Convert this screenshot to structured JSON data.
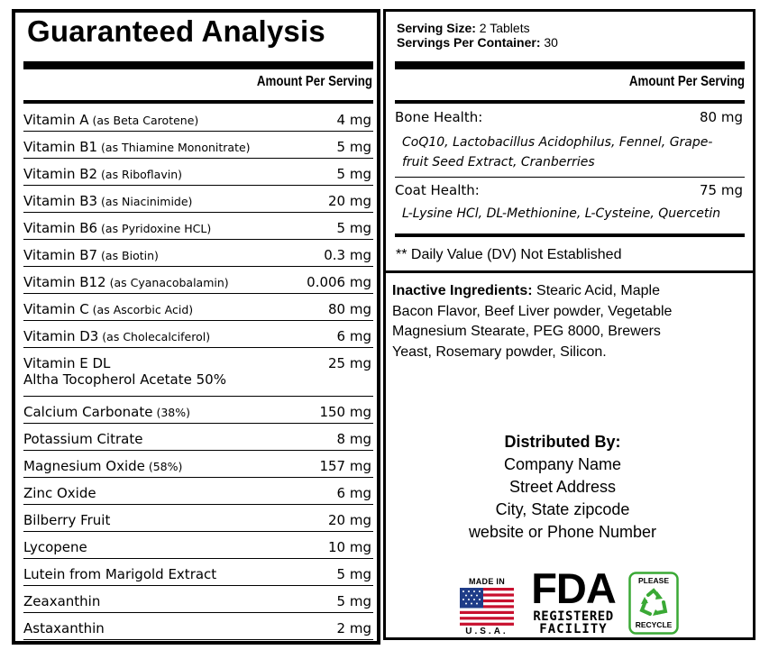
{
  "title": "Guaranteed Analysis",
  "serving": {
    "size_label": "Serving Size:",
    "size_value": " 2 Tablets",
    "per_container_label": "Servings Per Container:",
    "per_container_value": " 30"
  },
  "left_table": {
    "header": "Amount Per Serving",
    "rows": [
      {
        "name": "Vitamin A",
        "sub": " (as Beta Carotene)",
        "amount": "4 mg"
      },
      {
        "name": "Vitamin B1",
        "sub": " (as Thiamine Mononitrate)",
        "amount": "5 mg"
      },
      {
        "name": "Vitamin B2",
        "sub": " (as Riboflavin)",
        "amount": "5 mg"
      },
      {
        "name": "Vitamin B3",
        "sub": " (as Niacinimide)",
        "amount": "20 mg"
      },
      {
        "name": "Vitamin B6",
        "sub": " (as Pyridoxine HCL)",
        "amount": "5 mg"
      },
      {
        "name": "Vitamin B7",
        "sub": " (as Biotin)",
        "amount": "0.3 mg"
      },
      {
        "name": "Vitamin B12",
        "sub": " (as Cyanacobalamin)",
        "amount": "0.006 mg"
      },
      {
        "name": "Vitamin C",
        "sub": " (as Ascorbic Acid)",
        "amount": "80 mg"
      },
      {
        "name": "Vitamin D3",
        "sub": " (as Cholecalciferol)",
        "amount": "6 mg"
      },
      {
        "name": "Vitamin E DL",
        "line2": "Altha Tocopherol Acetate 50%",
        "amount": "25 mg"
      },
      {
        "name": "Calcium Carbonate",
        "sub": " (38%)",
        "amount": "150 mg"
      },
      {
        "name": "Potassium Citrate",
        "amount": "8 mg"
      },
      {
        "name": "Magnesium Oxide",
        "sub": " (58%)",
        "amount": "157 mg"
      },
      {
        "name": "Zinc Oxide",
        "amount": "6 mg"
      },
      {
        "name": "Bilberry Fruit",
        "amount": "20 mg"
      },
      {
        "name": "Lycopene",
        "amount": "10 mg"
      },
      {
        "name": "Lutein from Marigold Extract",
        "amount": "5 mg"
      },
      {
        "name": "Zeaxanthin",
        "amount": "5 mg"
      },
      {
        "name": "Astaxanthin",
        "amount": "2 mg"
      }
    ]
  },
  "right_table": {
    "header": "Amount Per Serving",
    "rows": [
      {
        "label": "Bone Health:",
        "amount": "80 mg",
        "detail_line1": "CoQ10, Lactobacillus Acidophilus, Fennel, Grape-",
        "detail_line2": "fruit Seed Extract, Cranberries"
      },
      {
        "label": "Coat Health:",
        "amount": "75 mg",
        "detail_line1": "L-Lysine HCl, DL-Methionine, L-Cysteine, Quercetin"
      }
    ],
    "note": "** Daily Value (DV) Not Established"
  },
  "inactive": {
    "label": "Inactive Ingredients:",
    "lines": [
      " Stearic Acid, Maple",
      "Bacon Flavor, Beef Liver powder, Vegetable",
      "Magnesium Stearate, PEG 8000, Brewers",
      "Yeast, Rosemary powder, Silicon."
    ]
  },
  "distributor": {
    "heading": "Distributed By:",
    "lines": [
      "Company Name",
      "Street Address",
      "City, State zipcode",
      "website or  Phone Number"
    ]
  },
  "badges": {
    "made_in_top": "MADE IN",
    "made_in_bottom": "U.S.A.",
    "fda_big": "FDA",
    "fda_line1": "REGISTERED",
    "fda_line2": "FACILITY",
    "recycle_top": "PLEASE",
    "recycle_bottom": "RECYCLE",
    "colors": {
      "flag_red": "#c8102e",
      "flag_blue": "#1f3c88",
      "recycle_green": "#3aa935"
    }
  }
}
